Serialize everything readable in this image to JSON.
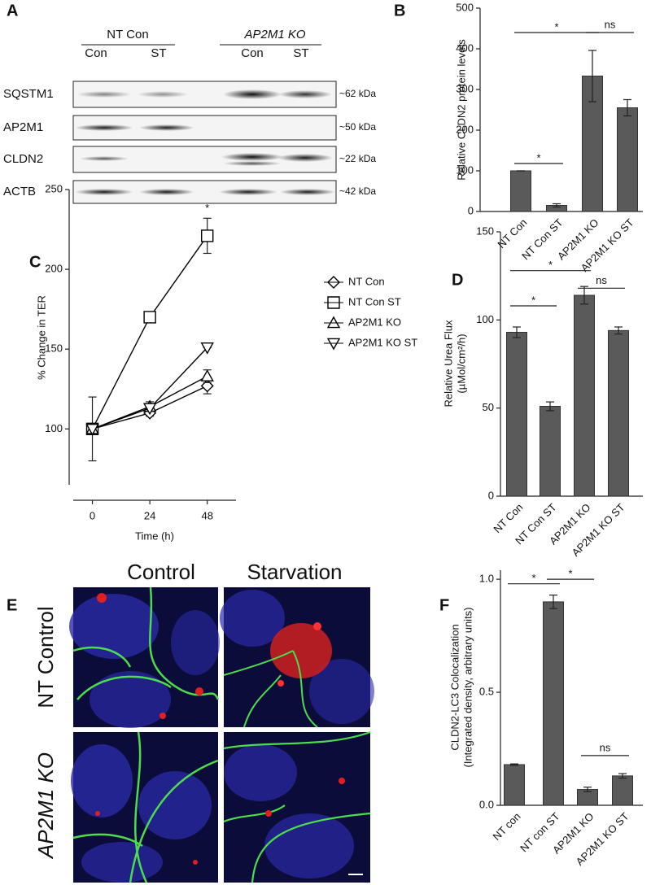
{
  "panel_labels": [
    "A",
    "B",
    "C",
    "D",
    "E",
    "F"
  ],
  "blot": {
    "groups": [
      {
        "name": "NT Con",
        "lanes": [
          "Con",
          "ST"
        ]
      },
      {
        "name": "AP2M1 KO",
        "lanes": [
          "Con",
          "ST"
        ]
      }
    ],
    "rows": [
      {
        "protein": "SQSTM1",
        "size": "~62 kDa"
      },
      {
        "protein": "AP2M1",
        "size": "~50 kDa"
      },
      {
        "protein": "CLDN2",
        "size": "~22 kDa"
      },
      {
        "protein": "ACTB",
        "size": "~42 kDa"
      }
    ]
  },
  "micrographs": {
    "columns": [
      "Control",
      "Starvation"
    ],
    "rows": [
      "NT Control",
      "AP2M1 KO"
    ]
  },
  "chart_data": [
    {
      "type": "bar",
      "ylabel": "Relative CLDN2 protein levels",
      "categories": [
        "NT Con",
        "NT Con ST",
        "AP2M1 KO",
        "AP2M1 KO ST"
      ],
      "values": [
        100,
        15,
        333,
        255
      ],
      "errors": [
        0,
        4,
        63,
        20
      ],
      "color": "#5a5a5a",
      "ylim": [
        0,
        500
      ],
      "yticks": [
        0,
        100,
        200,
        300,
        400,
        500
      ],
      "annotations": [
        {
          "text": "*",
          "x": [
            "NT Con",
            "NT Con ST"
          ],
          "y": 118
        },
        {
          "text": "*",
          "x": [
            "NT Con",
            "AP2M1 KO"
          ],
          "y": 440
        },
        {
          "text": "ns",
          "x": [
            "AP2M1 KO",
            "AP2M1 KO ST"
          ],
          "y": 440
        }
      ]
    },
    {
      "type": "line",
      "ylabel": "% Change in  TER",
      "xlabel": "Time (h)",
      "x": [
        0,
        24,
        48
      ],
      "xlim": [
        -8,
        60
      ],
      "xticks": [
        0,
        24,
        48
      ],
      "ylim": [
        65,
        250
      ],
      "yticks": [
        100,
        150,
        200,
        250
      ],
      "legend": "right",
      "series": [
        {
          "name": "NT Con",
          "color": "#000000",
          "marker": "diamond",
          "values": [
            100,
            110,
            127
          ],
          "errors": [
            20,
            2,
            5
          ]
        },
        {
          "name": "NT Con ST",
          "color": "#000000",
          "marker": "square",
          "values": [
            100,
            170,
            221
          ],
          "errors": [
            0,
            0,
            11
          ]
        },
        {
          "name": "AP2M1 KO",
          "color": "#000000",
          "marker": "triangle-up",
          "values": [
            100,
            114,
            133
          ],
          "errors": [
            0,
            3,
            4
          ]
        },
        {
          "name": "AP2M1 KO ST",
          "color": "#000000",
          "marker": "triangle-down",
          "values": [
            100,
            113,
            151
          ],
          "errors": [
            0,
            0,
            0
          ]
        }
      ],
      "annotations": [
        {
          "text": "*",
          "x": 48,
          "y": 238
        }
      ]
    },
    {
      "type": "bar",
      "ylabel": "Relative Urea Flux",
      "ylabel_unit": "(µMol/cm²/h)",
      "categories": [
        "NT Con",
        "NT Con ST",
        "AP2M1 KO",
        "AP2M1 KO ST"
      ],
      "values": [
        93,
        51,
        114,
        94
      ],
      "errors": [
        3,
        2.5,
        5,
        2
      ],
      "color": "#5a5a5a",
      "ylim": [
        0,
        150
      ],
      "yticks": [
        0,
        50,
        100,
        150
      ],
      "annotations": [
        {
          "text": "*",
          "x": [
            "NT Con",
            "NT Con ST"
          ],
          "y": 108
        },
        {
          "text": "*",
          "x": [
            "NT Con",
            "AP2M1 KO"
          ],
          "y": 128
        },
        {
          "text": "ns",
          "x": [
            "AP2M1 KO",
            "AP2M1 KO ST"
          ],
          "y": 118
        }
      ]
    },
    {
      "type": "bar",
      "ylabel": "CLDN2-LC3 Colocalization",
      "ylabel_unit": "(Integrated density, arbitrary units)",
      "categories": [
        "NT con",
        "NT con ST",
        "AP2M1 KO",
        "AP2M1 KO ST"
      ],
      "values": [
        0.18,
        0.9,
        0.07,
        0.13
      ],
      "errors": [
        0.003,
        0.03,
        0.01,
        0.01
      ],
      "color": "#5a5a5a",
      "ylim": [
        0,
        1.04
      ],
      "yticks": [
        {
          "value": 0,
          "label": "0.0"
        },
        0.5,
        {
          "value": 1,
          "label": "1.0"
        }
      ],
      "annotations": [
        {
          "text": "*",
          "x": [
            "NT con",
            "NT con ST"
          ],
          "y": 0.98
        },
        {
          "text": "*",
          "x": [
            "NT con ST",
            "AP2M1 KO"
          ],
          "y": 1.0
        },
        {
          "text": "ns",
          "x": [
            "AP2M1 KO",
            "AP2M1 KO ST"
          ],
          "y": 0.22
        }
      ]
    }
  ]
}
